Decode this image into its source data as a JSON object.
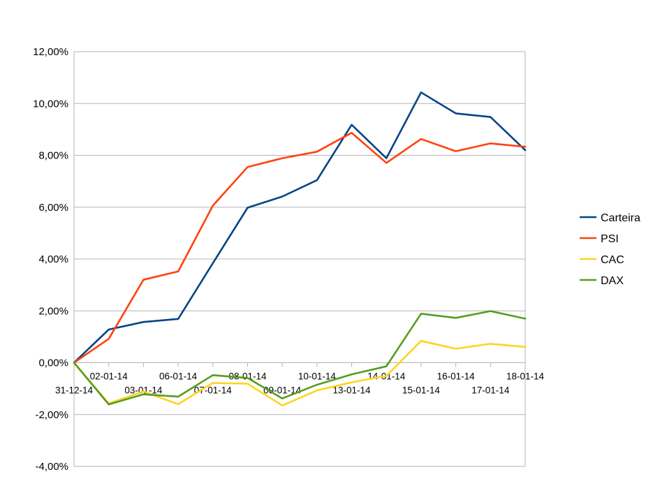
{
  "chart_data": {
    "type": "line",
    "categories": [
      "31-12-14",
      "02-01-14",
      "03-01-14",
      "06-01-14",
      "07-01-14",
      "08-01-14",
      "09-01-14",
      "10-01-14",
      "13-01-14",
      "14-01-14",
      "15-01-14",
      "16-01-14",
      "17-01-14",
      "18-01-14"
    ],
    "y_tick_labels": [
      "-4,00%",
      "-2,00%",
      "0,00%",
      "2,00%",
      "4,00%",
      "6,00%",
      "8,00%",
      "10,00%",
      "12,00%"
    ],
    "ylim": [
      -4,
      12
    ],
    "y_step": 2,
    "grid": "horizontal",
    "legend_position": "right",
    "series": [
      {
        "name": "Carteira",
        "color": "#004586",
        "values": [
          0.0,
          1.28,
          1.57,
          1.69,
          3.84,
          5.98,
          6.41,
          7.04,
          9.18,
          7.89,
          10.43,
          9.62,
          9.48,
          8.2
        ]
      },
      {
        "name": "PSI",
        "color": "#ff420e",
        "values": [
          0.0,
          0.92,
          3.2,
          3.52,
          6.06,
          7.55,
          7.89,
          8.14,
          8.87,
          7.71,
          8.63,
          8.16,
          8.46,
          8.33
        ]
      },
      {
        "name": "CAC",
        "color": "#ffd320",
        "values": [
          0.0,
          -1.57,
          -1.11,
          -1.6,
          -0.78,
          -0.81,
          -1.65,
          -1.07,
          -0.76,
          -0.51,
          0.84,
          0.54,
          0.73,
          0.61
        ]
      },
      {
        "name": "DAX",
        "color": "#579d1c",
        "values": [
          0.0,
          -1.61,
          -1.22,
          -1.31,
          -0.48,
          -0.59,
          -1.38,
          -0.85,
          -0.45,
          -0.14,
          1.89,
          1.73,
          1.99,
          1.7
        ]
      }
    ]
  }
}
